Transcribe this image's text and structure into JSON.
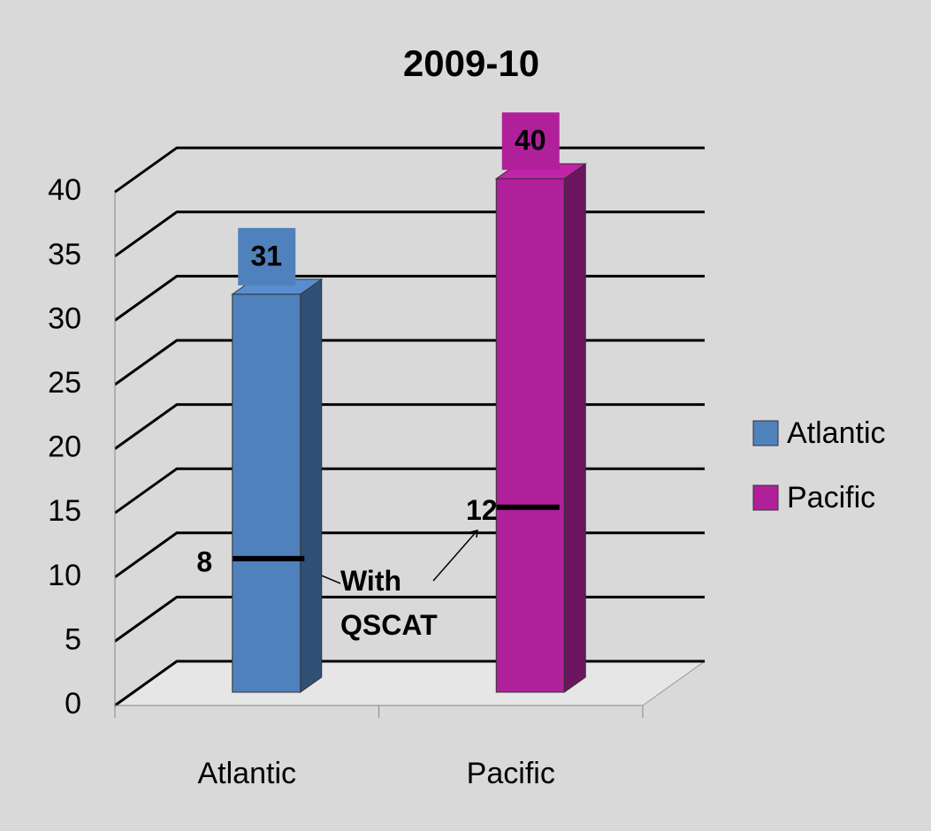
{
  "chart_data": {
    "type": "bar3d",
    "title": "2009-10",
    "categories": [
      "Atlantic",
      "Pacific"
    ],
    "series": [
      {
        "name": "Atlantic",
        "color": "#4f81bd",
        "values": [
          31,
          null
        ]
      },
      {
        "name": "Pacific",
        "color": "#b0209b",
        "values": [
          null,
          40
        ]
      }
    ],
    "ylim": [
      0,
      40
    ],
    "yticks": [
      0,
      5,
      10,
      15,
      20,
      25,
      30,
      35,
      40
    ],
    "grid": true,
    "legend": "right",
    "qscat": {
      "label": "With QSCAT",
      "values": [
        8,
        12
      ]
    }
  }
}
